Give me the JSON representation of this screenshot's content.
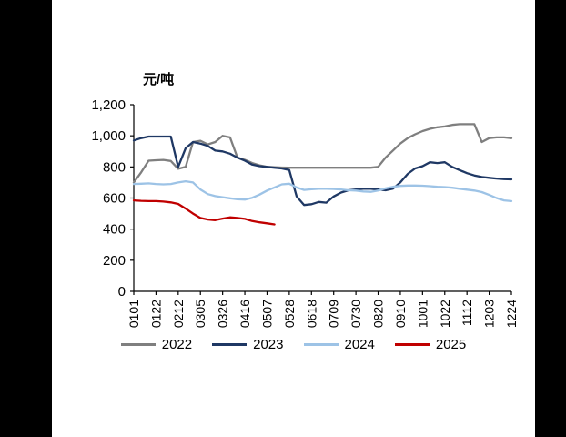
{
  "chart_data": {
    "type": "line",
    "title": "",
    "ylabel": "元/吨",
    "xlabel": "",
    "ylim": [
      0,
      1200
    ],
    "yticks": [
      0,
      200,
      400,
      600,
      800,
      1000,
      1200
    ],
    "ytick_labels": [
      "0",
      "200",
      "400",
      "600",
      "800",
      "1,000",
      "1,200"
    ],
    "x_tick_labels": [
      "0101",
      "0122",
      "0212",
      "0305",
      "0326",
      "0416",
      "0507",
      "0528",
      "0618",
      "0709",
      "0730",
      "0820",
      "0910",
      "1001",
      "1022",
      "1112",
      "1203",
      "1224"
    ],
    "x_tick_step": 3,
    "n_points": 52,
    "grid": "off",
    "legend_position": "bottom",
    "series": [
      {
        "name": "2022",
        "color": "#7F7F7F",
        "values": [
          700,
          765,
          840,
          843,
          845,
          838,
          788,
          800,
          960,
          968,
          945,
          960,
          1000,
          990,
          860,
          845,
          825,
          810,
          800,
          798,
          796,
          795,
          795,
          795,
          795,
          795,
          795,
          795,
          795,
          795,
          795,
          795,
          795,
          800,
          860,
          905,
          950,
          985,
          1010,
          1030,
          1045,
          1055,
          1060,
          1070,
          1075,
          1075,
          1075,
          960,
          985,
          990,
          990,
          985
        ]
      },
      {
        "name": "2023",
        "color": "#1F3864",
        "values": [
          970,
          985,
          995,
          995,
          995,
          995,
          800,
          920,
          960,
          950,
          935,
          905,
          900,
          885,
          860,
          840,
          815,
          805,
          800,
          795,
          790,
          780,
          610,
          555,
          560,
          575,
          570,
          610,
          635,
          650,
          655,
          660,
          660,
          655,
          650,
          660,
          700,
          755,
          790,
          805,
          830,
          825,
          830,
          800,
          780,
          760,
          745,
          735,
          730,
          725,
          722,
          720
        ]
      },
      {
        "name": "2024",
        "color": "#9DC3E6",
        "values": [
          690,
          692,
          694,
          690,
          688,
          690,
          700,
          708,
          700,
          655,
          625,
          612,
          605,
          598,
          592,
          590,
          602,
          622,
          648,
          668,
          688,
          692,
          668,
          652,
          656,
          660,
          660,
          658,
          655,
          650,
          648,
          642,
          640,
          648,
          662,
          672,
          678,
          680,
          680,
          679,
          676,
          672,
          670,
          666,
          660,
          654,
          648,
          638,
          620,
          600,
          585,
          580
        ]
      },
      {
        "name": "2025",
        "color": "#C00000",
        "values": [
          585,
          582,
          580,
          580,
          577,
          572,
          562,
          532,
          500,
          472,
          462,
          458,
          468,
          476,
          472,
          466,
          452,
          444,
          437,
          430
        ]
      }
    ]
  }
}
